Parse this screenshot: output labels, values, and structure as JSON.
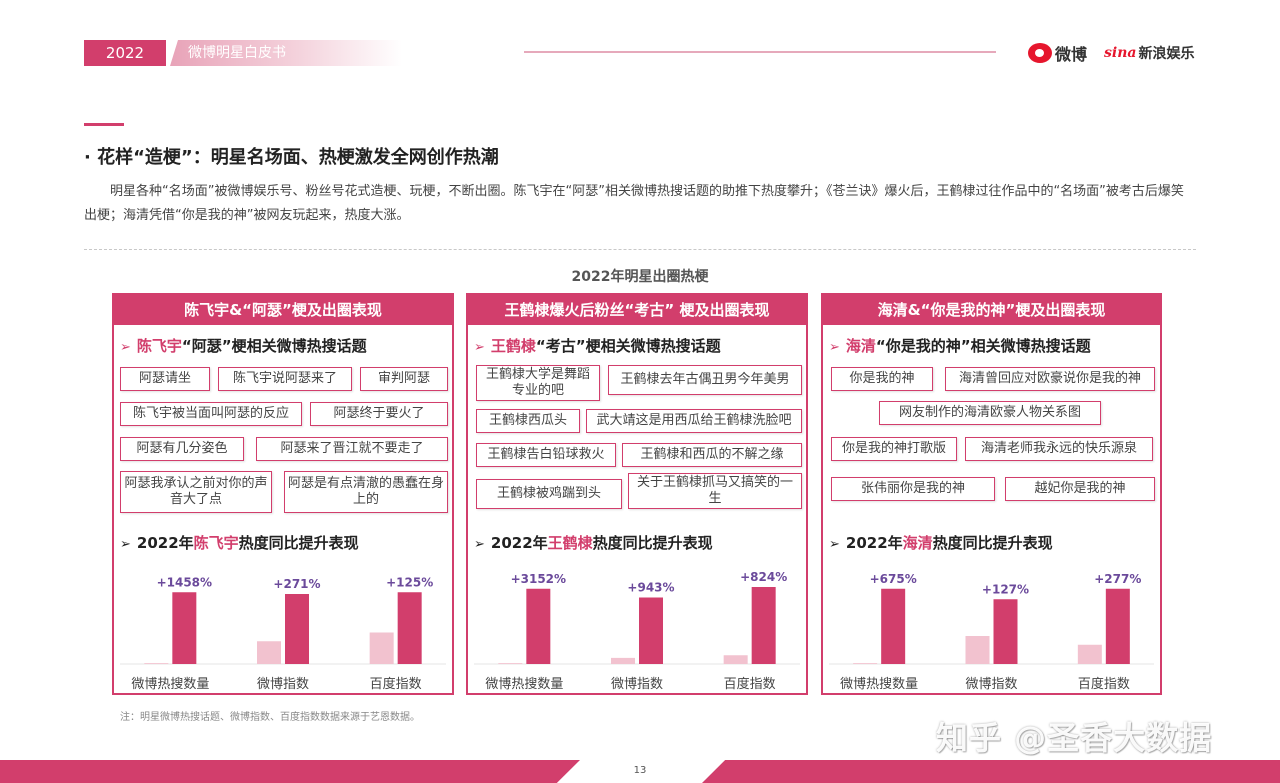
{
  "header": {
    "year": "2022",
    "title": "微博明星白皮书",
    "logo_weibo": "微博",
    "logo_sina_a": "sina",
    "logo_sina_b": "新浪娱乐"
  },
  "section": {
    "title": "· 花样“造梗”：明星名场面、热梗激发全网创作热潮",
    "intro": "明星各种“名场面”被微博娱乐号、粉丝号花式造梗、玩梗，不断出圈。陈飞宇在“阿瑟”相关微博热搜话题的助推下热度攀升；《苍兰诀》爆火后，王鹤棣过往作品中的“名场面”被考古后爆笑出梗；海清凭借“你是我的神”被网友玩起来，热度大涨。"
  },
  "figure_title": "2022年明星出圈热梗",
  "colors": {
    "accent": "#d23e6c",
    "light_bar": "#f2c2cf",
    "value_label": "#6b4a9b"
  },
  "panels": [
    {
      "head": "陈飞宇&“阿瑟”梗及出圈表现",
      "sub_name": "陈飞宇",
      "sub_rest": "“阿瑟”梗相关微博热搜话题",
      "tags": [
        "阿瑟请坐",
        "陈飞宇说阿瑟来了",
        "审判阿瑟",
        "陈飞宇被当面叫阿瑟的反应",
        "阿瑟终于要火了",
        "阿瑟有几分姿色",
        "阿瑟来了晋江就不要走了",
        "阿瑟我承认之前对你的声音大了点",
        "阿瑟是有点清澈的愚蠢在身上的"
      ],
      "chart_prefix": "2022年",
      "chart_name": "陈飞宇",
      "chart_suffix": "热度同比提升表现"
    },
    {
      "head": "王鹤棣爆火后粉丝“考古” 梗及出圈表现",
      "sub_name": "王鹤棣",
      "sub_rest": "“考古”梗相关微博热搜话题",
      "tags": [
        "王鹤棣大学是舞蹈专业的吧",
        "王鹤棣去年古偶丑男今年美男",
        "王鹤棣西瓜头",
        "武大靖这是用西瓜给王鹤棣洗脸吧",
        "王鹤棣告白铅球救火",
        "王鹤棣和西瓜的不解之缘",
        "王鹤棣被鸡踹到头",
        "关于王鹤棣抓马又搞笑的一生"
      ],
      "chart_prefix": "2022年",
      "chart_name": "王鹤棣",
      "chart_suffix": "热度同比提升表现"
    },
    {
      "head": "海清&“你是我的神”梗及出圈表现",
      "sub_name": "海清",
      "sub_rest": "“你是我的神”相关微博热搜话题",
      "tags": [
        "你是我的神",
        "海清曾回应对欧豪说你是我的神",
        "网友制作的海清欧豪人物关系图",
        "你是我的神打歌版",
        "海清老师我永远的快乐源泉",
        "张伟丽你是我的神",
        "越妃你是我的神"
      ],
      "chart_prefix": "2022年",
      "chart_name": "海清",
      "chart_suffix": "热度同比提升表现"
    }
  ],
  "chart_data": [
    {
      "type": "bar",
      "title": "2022年陈飞宇热度同比提升表现",
      "categories": [
        "微博热搜数量",
        "微博指数",
        "百度指数"
      ],
      "growth_labels": [
        "+1458%",
        "+271%",
        "+125%"
      ],
      "series": [
        {
          "values": [
            0.5,
            13,
            18
          ]
        },
        {
          "values": [
            41,
            40,
            41
          ]
        }
      ]
    },
    {
      "type": "bar",
      "title": "2022年王鹤棣热度同比提升表现",
      "categories": [
        "微博热搜数量",
        "微博指数",
        "百度指数"
      ],
      "growth_labels": [
        "+3152%",
        "+943%",
        "+824%"
      ],
      "series": [
        {
          "values": [
            0.5,
            3.5,
            5
          ]
        },
        {
          "values": [
            43,
            38,
            44
          ]
        }
      ]
    },
    {
      "type": "bar",
      "title": "2022年海清热度同比提升表现",
      "categories": [
        "微博热搜数量",
        "微博指数",
        "百度指数"
      ],
      "growth_labels": [
        "+675%",
        "+127%",
        "+277%"
      ],
      "series": [
        {
          "values": [
            0.5,
            16,
            11
          ]
        },
        {
          "values": [
            43,
            37,
            43
          ]
        }
      ]
    }
  ],
  "footnote": "注：明星微博热搜话题、微博指数、百度指数数据来源于艺恩数据。",
  "page_number": "13",
  "watermark": "知乎 @圣香大数据"
}
